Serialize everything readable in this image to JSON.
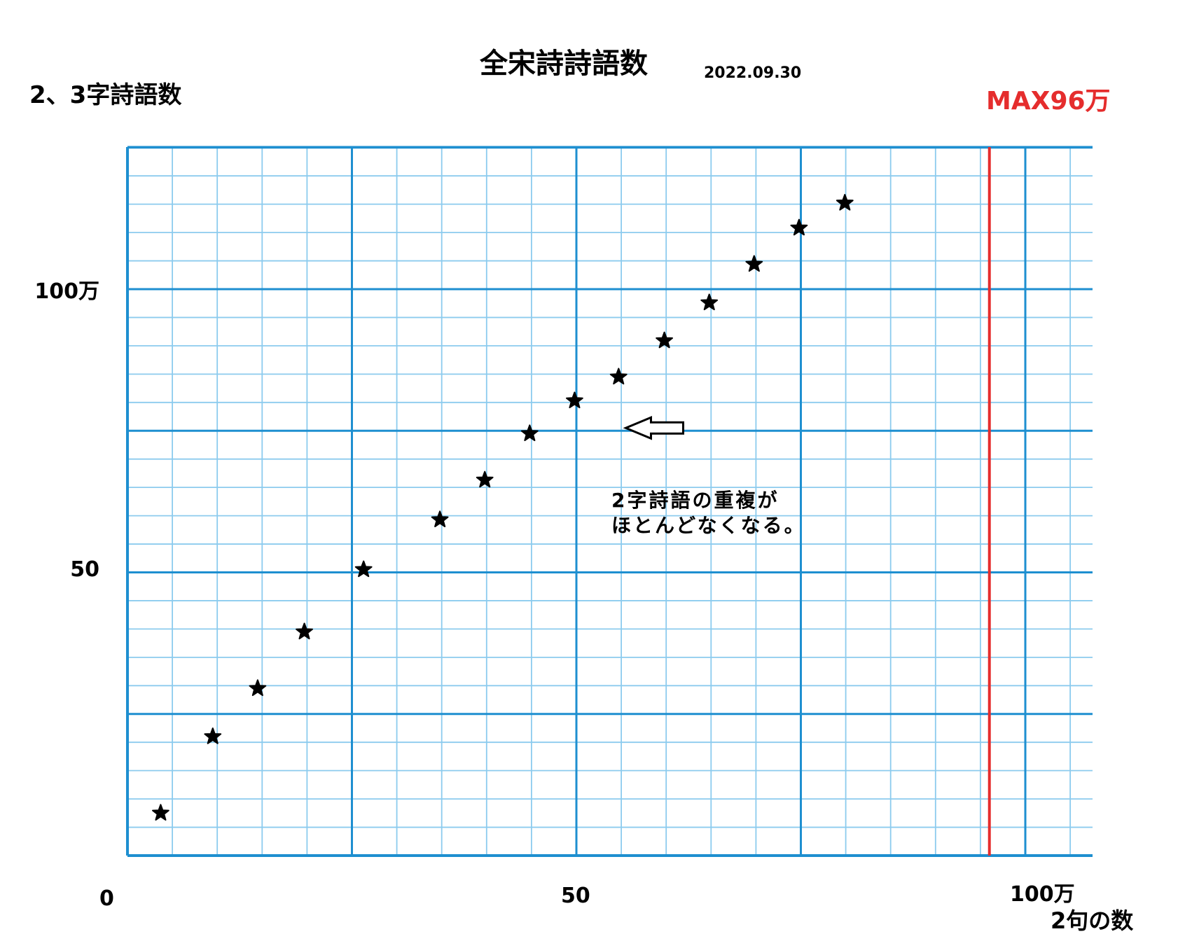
{
  "chart_data": {
    "type": "scatter",
    "title": "全宋詩詩語数",
    "date": "2022.09.30",
    "ylabel": "2、3字詩語数",
    "xlabel": "2句の数",
    "max_label": "MAX96万",
    "max_x": 96,
    "xlim": [
      0,
      107
    ],
    "ylim": [
      0,
      125
    ],
    "x_ticks": [
      {
        "value": 0,
        "label": "0"
      },
      {
        "value": 50,
        "label": "50"
      },
      {
        "value": 100,
        "label": "100万"
      }
    ],
    "y_ticks": [
      {
        "value": 50,
        "label": "50"
      },
      {
        "value": 100,
        "label": "100万"
      }
    ],
    "grid": true,
    "marker": "star",
    "colors": {
      "grid": "#1e8fd0",
      "grid_minor": "#8ccbee",
      "max_line": "#e52d2d",
      "marker": "#000000"
    },
    "points": [
      {
        "x": 3.7,
        "y": 7.5
      },
      {
        "x": 9.5,
        "y": 21
      },
      {
        "x": 14.5,
        "y": 29.5
      },
      {
        "x": 19.7,
        "y": 39.5
      },
      {
        "x": 26.3,
        "y": 50.5
      },
      {
        "x": 34.8,
        "y": 59.3
      },
      {
        "x": 39.8,
        "y": 66.3
      },
      {
        "x": 44.8,
        "y": 74.5
      },
      {
        "x": 49.8,
        "y": 80.3
      },
      {
        "x": 54.7,
        "y": 84.5
      },
      {
        "x": 59.8,
        "y": 90.9
      },
      {
        "x": 64.8,
        "y": 97.6
      },
      {
        "x": 69.8,
        "y": 104.4
      },
      {
        "x": 74.8,
        "y": 110.8
      },
      {
        "x": 79.9,
        "y": 115.2
      }
    ],
    "annotation": {
      "lines": [
        "2字詩語の重複が",
        "ほとんどなくなる。"
      ],
      "arrow_x": 55.5,
      "arrow_y": 75.5
    }
  }
}
